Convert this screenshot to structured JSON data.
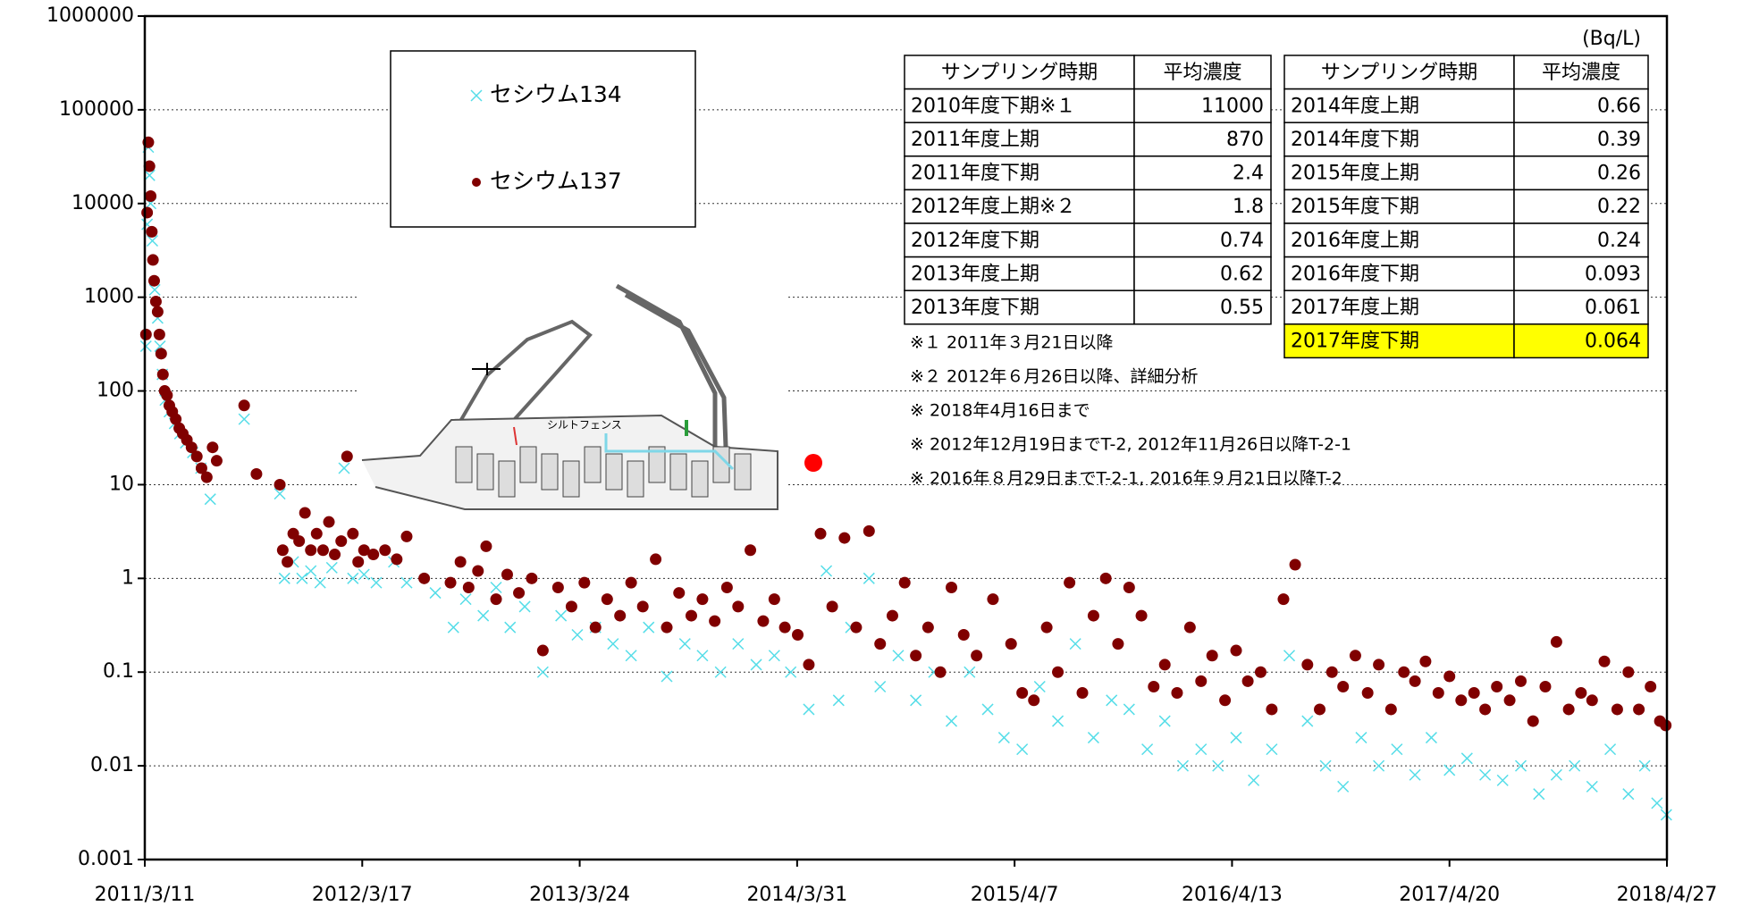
{
  "chart_data": {
    "type": "scatter",
    "log_y": true,
    "grid": true,
    "xlim": [
      "2011-03-11",
      "2018-04-27"
    ],
    "xticks": [
      {
        "value": "2011-03-11",
        "label": "2011/3/11"
      },
      {
        "value": "2012-03-17",
        "label": "2012/3/17"
      },
      {
        "value": "2013-03-24",
        "label": "2013/3/24"
      },
      {
        "value": "2014-03-31",
        "label": "2014/3/31"
      },
      {
        "value": "2015-04-07",
        "label": "2015/4/7"
      },
      {
        "value": "2016-04-13",
        "label": "2016/4/13"
      },
      {
        "value": "2017-04-20",
        "label": "2017/4/20"
      },
      {
        "value": "2018-04-27",
        "label": "2018/4/27"
      }
    ],
    "ylim": [
      0.001,
      1000000
    ],
    "yticks": [
      0.001,
      0.01,
      0.1,
      1,
      10,
      100,
      1000,
      10000,
      100000,
      1000000
    ],
    "series": [
      {
        "name": "セシウム134",
        "color": "#55dde8",
        "marker": "x",
        "x": [
          "2011-03-13",
          "2011-03-15",
          "2011-03-17",
          "2011-03-19",
          "2011-03-21",
          "2011-03-24",
          "2011-03-28",
          "2011-04-02",
          "2011-04-06",
          "2011-04-10",
          "2011-04-15",
          "2011-04-22",
          "2011-05-01",
          "2011-05-10",
          "2011-05-20",
          "2011-06-01",
          "2011-06-15",
          "2011-07-01",
          "2011-08-28",
          "2011-10-28",
          "2011-11-05",
          "2011-11-20",
          "2011-12-05",
          "2011-12-20",
          "2012-01-05",
          "2012-01-25",
          "2012-02-15",
          "2012-03-01",
          "2012-03-20",
          "2012-04-10",
          "2012-05-10",
          "2012-06-01",
          "2012-07-20",
          "2012-08-20",
          "2012-09-10",
          "2012-10-10",
          "2012-11-01",
          "2012-11-25",
          "2012-12-20",
          "2013-01-20",
          "2013-02-20",
          "2013-03-20",
          "2013-04-20",
          "2013-05-20",
          "2013-06-20",
          "2013-07-20",
          "2013-08-20",
          "2013-09-20",
          "2013-10-20",
          "2013-11-20",
          "2013-12-20",
          "2014-01-20",
          "2014-02-20",
          "2014-03-20",
          "2014-04-20",
          "2014-05-20",
          "2014-06-10",
          "2014-07-01",
          "2014-08-01",
          "2014-08-20",
          "2014-09-20",
          "2014-10-20",
          "2014-11-20",
          "2014-12-20",
          "2015-01-20",
          "2015-02-20",
          "2015-03-20",
          "2015-04-20",
          "2015-05-20",
          "2015-06-20",
          "2015-07-20",
          "2015-08-20",
          "2015-09-20",
          "2015-10-20",
          "2015-11-20",
          "2015-12-20",
          "2016-01-20",
          "2016-02-20",
          "2016-03-20",
          "2016-04-20",
          "2016-05-20",
          "2016-06-20",
          "2016-07-20",
          "2016-08-20",
          "2016-09-20",
          "2016-10-20",
          "2016-11-20",
          "2016-12-20",
          "2017-01-20",
          "2017-02-20",
          "2017-03-20",
          "2017-04-20",
          "2017-05-20",
          "2017-06-20",
          "2017-07-20",
          "2017-08-20",
          "2017-09-20",
          "2017-10-20",
          "2017-11-20",
          "2017-12-20",
          "2018-01-20",
          "2018-02-20",
          "2018-03-20",
          "2018-04-10",
          "2018-04-26"
        ],
        "values": [
          300,
          6000,
          40000,
          20000,
          10000,
          4000,
          1200,
          600,
          300,
          150,
          80,
          60,
          45,
          35,
          28,
          22,
          15,
          7,
          50,
          8,
          1,
          1.5,
          1,
          1.2,
          0.9,
          1.3,
          15,
          1,
          1.1,
          0.9,
          1.5,
          0.9,
          0.7,
          0.3,
          0.6,
          0.4,
          0.8,
          0.3,
          0.5,
          0.1,
          0.4,
          0.25,
          0.3,
          0.2,
          0.15,
          0.3,
          0.09,
          0.2,
          0.15,
          0.1,
          0.2,
          0.12,
          0.15,
          0.1,
          0.04,
          1.2,
          0.05,
          0.3,
          1,
          0.07,
          0.15,
          0.05,
          0.1,
          0.03,
          0.1,
          0.04,
          0.02,
          0.015,
          0.07,
          0.03,
          0.2,
          0.02,
          0.05,
          0.04,
          0.015,
          0.03,
          0.01,
          0.015,
          0.01,
          0.02,
          0.007,
          0.015,
          0.15,
          0.03,
          0.01,
          0.006,
          0.02,
          0.01,
          0.015,
          0.008,
          0.02,
          0.009,
          0.012,
          0.008,
          0.007,
          0.01,
          0.005,
          0.008,
          0.01,
          0.006,
          0.015,
          0.005,
          0.01,
          0.004,
          0.003
        ]
      },
      {
        "name": "セシウム137",
        "color": "#800000",
        "marker": "circle",
        "x": [
          "2011-03-13",
          "2011-03-15",
          "2011-03-17",
          "2011-03-19",
          "2011-03-21",
          "2011-03-23",
          "2011-03-25",
          "2011-03-27",
          "2011-03-30",
          "2011-04-02",
          "2011-04-05",
          "2011-04-08",
          "2011-04-11",
          "2011-04-14",
          "2011-04-18",
          "2011-04-22",
          "2011-04-27",
          "2011-05-03",
          "2011-05-09",
          "2011-05-15",
          "2011-05-22",
          "2011-05-30",
          "2011-06-08",
          "2011-06-16",
          "2011-06-25",
          "2011-07-05",
          "2011-07-12",
          "2011-08-28",
          "2011-09-18",
          "2011-10-28",
          "2011-11-02",
          "2011-11-10",
          "2011-11-20",
          "2011-11-30",
          "2011-12-10",
          "2011-12-20",
          "2011-12-30",
          "2012-01-10",
          "2012-01-20",
          "2012-01-30",
          "2012-02-10",
          "2012-02-20",
          "2012-03-01",
          "2012-03-10",
          "2012-03-20",
          "2012-04-05",
          "2012-04-25",
          "2012-05-15",
          "2012-06-01",
          "2012-07-01",
          "2012-08-15",
          "2012-09-01",
          "2012-09-15",
          "2012-10-01",
          "2012-10-15",
          "2012-11-01",
          "2012-11-20",
          "2012-12-10",
          "2013-01-01",
          "2013-01-20",
          "2013-02-15",
          "2013-03-10",
          "2013-04-01",
          "2013-04-20",
          "2013-05-10",
          "2013-06-01",
          "2013-06-20",
          "2013-07-10",
          "2013-08-01",
          "2013-08-20",
          "2013-09-10",
          "2013-10-01",
          "2013-10-20",
          "2013-11-10",
          "2013-12-01",
          "2013-12-20",
          "2014-01-10",
          "2014-02-01",
          "2014-02-20",
          "2014-03-10",
          "2014-04-01",
          "2014-04-20",
          "2014-05-10",
          "2014-05-30",
          "2014-06-20",
          "2014-07-10",
          "2014-08-01",
          "2014-08-20",
          "2014-09-10",
          "2014-10-01",
          "2014-10-20",
          "2014-11-10",
          "2014-12-01",
          "2014-12-20",
          "2015-01-10",
          "2015-02-01",
          "2015-03-01",
          "2015-04-01",
          "2015-04-20",
          "2015-05-10",
          "2015-06-01",
          "2015-06-20",
          "2015-07-10",
          "2015-08-01",
          "2015-08-20",
          "2015-09-10",
          "2015-10-01",
          "2015-10-20",
          "2015-11-10",
          "2015-12-01",
          "2015-12-20",
          "2016-01-10",
          "2016-02-01",
          "2016-02-20",
          "2016-03-10",
          "2016-04-01",
          "2016-04-20",
          "2016-05-10",
          "2016-06-01",
          "2016-06-20",
          "2016-07-10",
          "2016-07-30",
          "2016-08-20",
          "2016-09-10",
          "2016-10-01",
          "2016-10-20",
          "2016-11-10",
          "2016-12-01",
          "2016-12-20",
          "2017-01-10",
          "2017-02-01",
          "2017-02-20",
          "2017-03-10",
          "2017-04-01",
          "2017-04-20",
          "2017-05-10",
          "2017-06-01",
          "2017-06-20",
          "2017-07-10",
          "2017-08-01",
          "2017-08-20",
          "2017-09-10",
          "2017-10-01",
          "2017-10-20",
          "2017-11-10",
          "2017-12-01",
          "2017-12-20",
          "2018-01-10",
          "2018-02-01",
          "2018-02-20",
          "2018-03-10",
          "2018-03-30",
          "2018-04-15",
          "2018-04-25"
        ],
        "values": [
          400,
          8000,
          45000,
          25000,
          12000,
          5000,
          2500,
          1500,
          900,
          700,
          400,
          250,
          150,
          100,
          90,
          70,
          60,
          50,
          40,
          35,
          30,
          25,
          20,
          15,
          12,
          25,
          18,
          70,
          13,
          10,
          2,
          1.5,
          3,
          2.5,
          5,
          2,
          3,
          2,
          4,
          1.8,
          2.5,
          20,
          3,
          1.5,
          2,
          1.8,
          2,
          1.6,
          2.8,
          1,
          0.9,
          1.5,
          0.8,
          1.2,
          2.2,
          0.6,
          1.1,
          0.7,
          1,
          0.17,
          0.8,
          0.5,
          0.9,
          0.3,
          0.6,
          0.4,
          0.9,
          0.5,
          1.6,
          0.3,
          0.7,
          0.4,
          0.6,
          0.35,
          0.8,
          0.5,
          2,
          0.35,
          0.6,
          0.3,
          0.25,
          0.12,
          3,
          0.5,
          2.7,
          0.3,
          3.2,
          0.2,
          0.4,
          0.9,
          0.15,
          0.3,
          0.1,
          0.8,
          0.25,
          0.15,
          0.6,
          0.2,
          0.06,
          0.05,
          0.3,
          0.1,
          0.9,
          0.06,
          0.4,
          1,
          0.2,
          0.8,
          0.4,
          0.07,
          0.12,
          0.06,
          0.3,
          0.08,
          0.15,
          0.05,
          0.17,
          0.08,
          0.1,
          0.04,
          0.6,
          1.4,
          0.12,
          0.04,
          0.1,
          0.07,
          0.15,
          0.06,
          0.12,
          0.04,
          0.1,
          0.08,
          0.13,
          0.06,
          0.09,
          0.05,
          0.06,
          0.04,
          0.07,
          0.05,
          0.08,
          0.03,
          0.07,
          0.21,
          0.04,
          0.06,
          0.05,
          0.13,
          0.04,
          0.1,
          0.04,
          0.07,
          0.03,
          0.027
        ]
      }
    ]
  },
  "unit": "(Bq/L)",
  "tables": [
    {
      "header": [
        "サンプリング時期",
        "平均濃度"
      ],
      "rows": [
        [
          "2010年度下期※１",
          "11000"
        ],
        [
          "2011年度上期",
          "870"
        ],
        [
          "2011年度下期",
          "2.4"
        ],
        [
          "2012年度上期※２",
          "1.8"
        ],
        [
          "2012年度下期",
          "0.74"
        ],
        [
          "2013年度上期",
          "0.62"
        ],
        [
          "2013年度下期",
          "0.55"
        ]
      ]
    },
    {
      "header": [
        "サンプリング時期",
        "平均濃度"
      ],
      "rows": [
        [
          "2014年度上期",
          "0.66"
        ],
        [
          "2014年度下期",
          "0.39"
        ],
        [
          "2015年度上期",
          "0.26"
        ],
        [
          "2015年度下期",
          "0.22"
        ],
        [
          "2016年度上期",
          "0.24"
        ],
        [
          "2016年度下期",
          "0.093"
        ],
        [
          "2017年度上期",
          "0.061"
        ],
        [
          "2017年度下期",
          "0.064"
        ]
      ]
    }
  ],
  "notes": [
    "※１  2011年３月21日以降",
    "※２  2012年６月26日以降、詳細分析",
    "※  2018年4月16日まで",
    "※  2012年12月19日までT-2, 2012年11月26日以降T-2-1",
    "※  2016年８月29日までT-2-1, 2016年９月21日以降T-2"
  ],
  "inset": {
    "label": "シルトフェンス"
  }
}
